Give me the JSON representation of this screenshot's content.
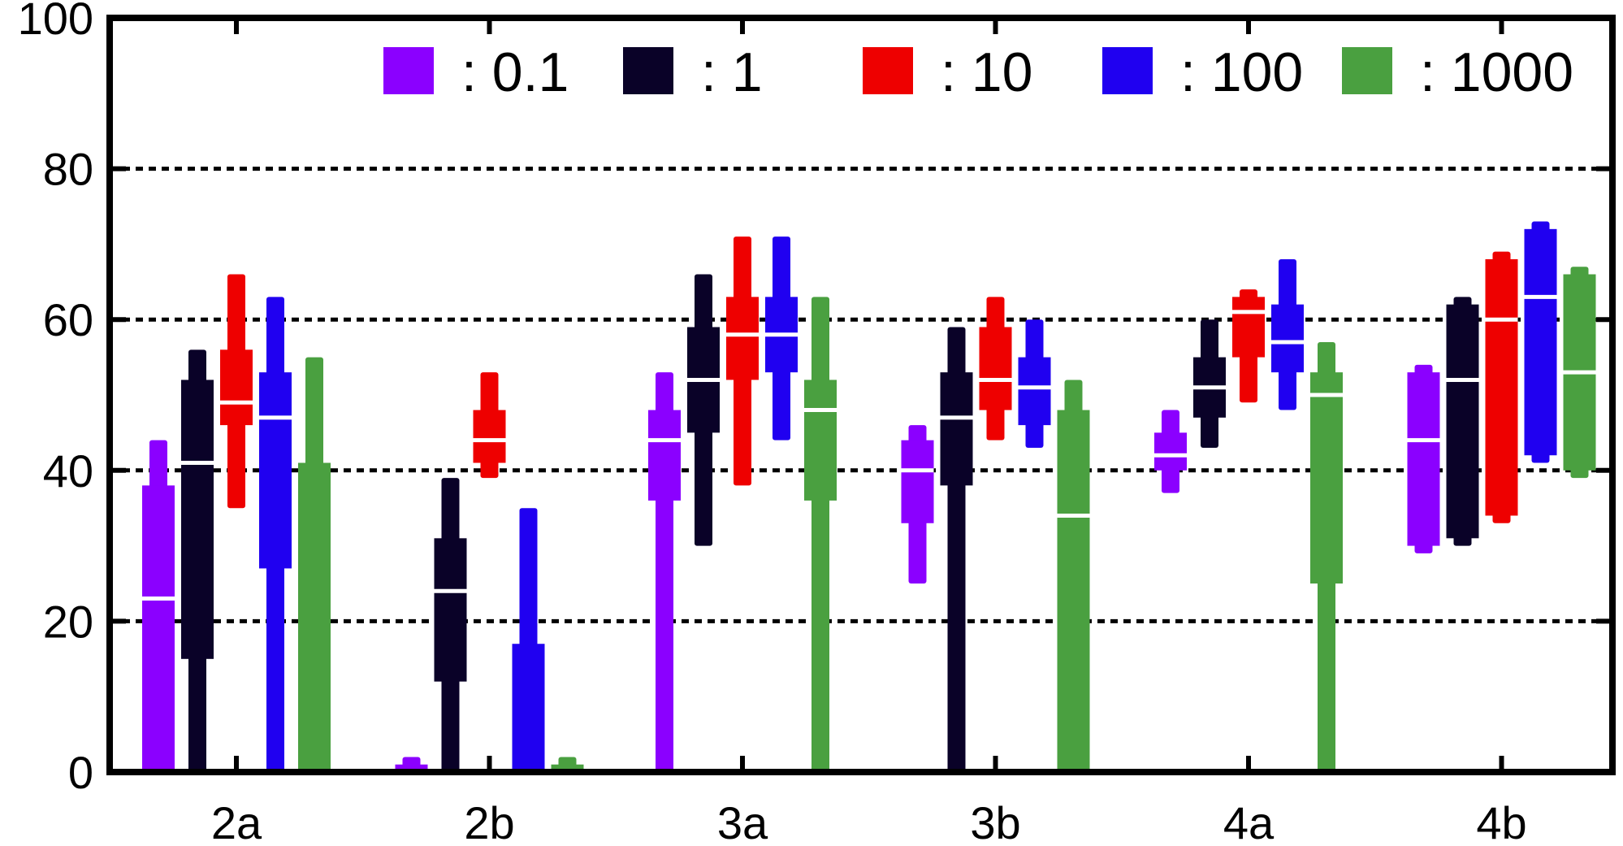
{
  "chart_data": {
    "type": "boxplot",
    "title": "",
    "xlabel": "",
    "ylabel": "",
    "ylim": [
      0,
      100
    ],
    "yticks": [
      0,
      20,
      40,
      60,
      80,
      100
    ],
    "grid": "horizontal dashed at 20, 40, 60, 80",
    "legend_position": "top",
    "categories": [
      "2a",
      "2b",
      "3a",
      "3b",
      "4a",
      "4b"
    ],
    "series": [
      {
        "name": ": 0.1",
        "color": "#8B00FF",
        "boxes": [
          {
            "min": 0,
            "q1": 0,
            "median": 23,
            "q3": 38,
            "max": 44
          },
          {
            "min": 0,
            "q1": 0,
            "median": 0,
            "q3": 1,
            "max": 2
          },
          {
            "min": 0,
            "q1": 36,
            "median": 44,
            "q3": 48,
            "max": 53
          },
          {
            "min": 25,
            "q1": 33,
            "median": 40,
            "q3": 44,
            "max": 46
          },
          {
            "min": 37,
            "q1": 40,
            "median": 42,
            "q3": 45,
            "max": 48
          },
          {
            "min": 29,
            "q1": 30,
            "median": 44,
            "q3": 53,
            "max": 54
          }
        ]
      },
      {
        "name": ": 1",
        "color": "#0A0228",
        "boxes": [
          {
            "min": 0,
            "q1": 15,
            "median": 41,
            "q3": 52,
            "max": 56
          },
          {
            "min": 0,
            "q1": 12,
            "median": 24,
            "q3": 31,
            "max": 39
          },
          {
            "min": 30,
            "q1": 45,
            "median": 52,
            "q3": 59,
            "max": 66
          },
          {
            "min": 0,
            "q1": 38,
            "median": 47,
            "q3": 53,
            "max": 59
          },
          {
            "min": 43,
            "q1": 47,
            "median": 51,
            "q3": 55,
            "max": 60
          },
          {
            "min": 30,
            "q1": 31,
            "median": 52,
            "q3": 62,
            "max": 63
          }
        ]
      },
      {
        "name": ": 10",
        "color": "#EE0000",
        "boxes": [
          {
            "min": 35,
            "q1": 46,
            "median": 49,
            "q3": 56,
            "max": 66
          },
          {
            "min": 39,
            "q1": 41,
            "median": 44,
            "q3": 48,
            "max": 53
          },
          {
            "min": 38,
            "q1": 52,
            "median": 58,
            "q3": 63,
            "max": 71
          },
          {
            "min": 44,
            "q1": 48,
            "median": 52,
            "q3": 59,
            "max": 63
          },
          {
            "min": 49,
            "q1": 55,
            "median": 61,
            "q3": 63,
            "max": 64
          },
          {
            "min": 33,
            "q1": 34,
            "median": 60,
            "q3": 68,
            "max": 69
          }
        ]
      },
      {
        "name": ": 100",
        "color": "#2000F0",
        "boxes": [
          {
            "min": 0,
            "q1": 27,
            "median": 47,
            "q3": 53,
            "max": 63
          },
          {
            "min": 0,
            "q1": 0,
            "median": 0,
            "q3": 17,
            "max": 35
          },
          {
            "min": 44,
            "q1": 53,
            "median": 58,
            "q3": 63,
            "max": 71
          },
          {
            "min": 43,
            "q1": 46,
            "median": 51,
            "q3": 55,
            "max": 60
          },
          {
            "min": 48,
            "q1": 53,
            "median": 57,
            "q3": 62,
            "max": 68
          },
          {
            "min": 41,
            "q1": 42,
            "median": 63,
            "q3": 72,
            "max": 73
          }
        ]
      },
      {
        "name": ": 1000",
        "color": "#4AA040",
        "boxes": [
          {
            "min": 0,
            "q1": 0,
            "median": 0,
            "q3": 41,
            "max": 55
          },
          {
            "min": 0,
            "q1": 0,
            "median": 0,
            "q3": 1,
            "max": 2
          },
          {
            "min": 0,
            "q1": 36,
            "median": 48,
            "q3": 52,
            "max": 63
          },
          {
            "min": 0,
            "q1": 0,
            "median": 34,
            "q3": 48,
            "max": 52
          },
          {
            "min": 0,
            "q1": 25,
            "median": 50,
            "q3": 53,
            "max": 57
          },
          {
            "min": 39,
            "q1": 40,
            "median": 53,
            "q3": 66,
            "max": 67
          }
        ]
      }
    ]
  }
}
